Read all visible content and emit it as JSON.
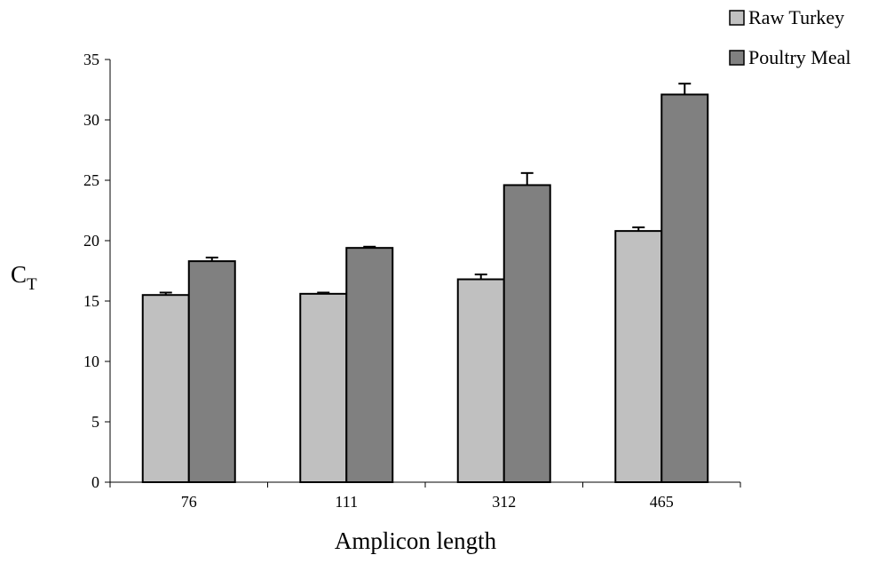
{
  "chart_data": {
    "type": "bar",
    "title": "",
    "xlabel": "Amplicon length",
    "ylabel": "C",
    "ylabel_subscript": "T",
    "categories": [
      "76",
      "111",
      "312",
      "465"
    ],
    "series": [
      {
        "name": "Raw Turkey",
        "color": "#c0c0c0",
        "values": [
          15.5,
          15.6,
          16.8,
          20.8
        ],
        "errors": [
          0.2,
          0.1,
          0.4,
          0.3
        ]
      },
      {
        "name": "Poultry Meal",
        "color": "#808080",
        "values": [
          18.3,
          19.4,
          24.6,
          32.1
        ],
        "errors": [
          0.3,
          0.1,
          1.0,
          0.9
        ]
      }
    ],
    "ylim": [
      0,
      35
    ],
    "yticks": [
      "0",
      "5",
      "10",
      "15",
      "20",
      "25",
      "30",
      "35"
    ],
    "grid": false,
    "legend_position": "top-right"
  }
}
